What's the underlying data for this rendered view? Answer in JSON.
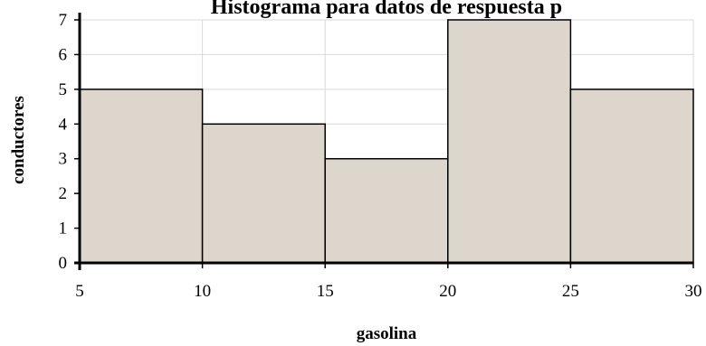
{
  "chart_data": {
    "type": "bar",
    "title": "Histograma para datos de respuesta p",
    "xlabel": "gasolina",
    "ylabel": "conductores",
    "bins": [
      {
        "from": 5,
        "to": 10,
        "value": 5
      },
      {
        "from": 10,
        "to": 15,
        "value": 4
      },
      {
        "from": 15,
        "to": 20,
        "value": 3
      },
      {
        "from": 20,
        "to": 25,
        "value": 7
      },
      {
        "from": 25,
        "to": 30,
        "value": 5
      }
    ],
    "x_ticks": [
      "5",
      "10",
      "15",
      "20",
      "25",
      "30"
    ],
    "y_ticks": [
      "0",
      "1",
      "2",
      "3",
      "4",
      "5",
      "6",
      "7"
    ],
    "xlim": [
      5,
      30
    ],
    "ylim": [
      0,
      7
    ],
    "grid": true,
    "colors": {
      "bar_fill": "#ddd6cc",
      "bar_stroke": "#000000",
      "grid": "#d9d9d9"
    }
  }
}
